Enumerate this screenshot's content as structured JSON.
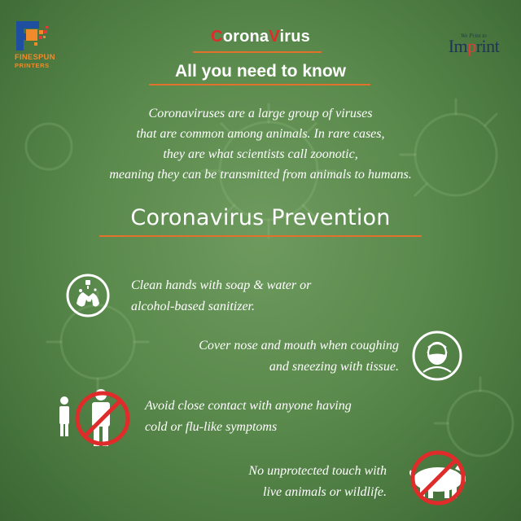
{
  "brand": {
    "logo_left": {
      "line1": "FINESPUN",
      "line2": "PRINTERS"
    },
    "logo_right": {
      "tagline": "We Print to",
      "name_prefix": "Im",
      "name_dot": "p",
      "name_suffix": "rint"
    }
  },
  "header": {
    "title_parts": [
      {
        "text": "C",
        "color": "#e02b2b"
      },
      {
        "text": "orona",
        "color": "#ffffff"
      },
      {
        "text": "V",
        "color": "#e02b2b"
      },
      {
        "text": "irus",
        "color": "#ffffff"
      }
    ],
    "subtitle": "All you need to know"
  },
  "intro": {
    "lines": [
      "Coronaviruses are a large group of  viruses",
      "that are common among animals. In rare cases,",
      "they are what scientists call zoonotic,",
      "meaning they can be transmitted from animals to humans."
    ]
  },
  "prevention": {
    "title": "Coronavirus Prevention",
    "tips": [
      {
        "lines": [
          "Clean hands with soap & water or",
          "alcohol-based sanitizer."
        ],
        "icon": "hand-washing-icon"
      },
      {
        "lines": [
          "Cover nose and mouth when coughing",
          "and sneezing with tissue."
        ],
        "icon": "face-mask-icon"
      },
      {
        "lines": [
          "Avoid close contact with anyone having",
          "cold or flu-like symptoms"
        ],
        "icon": "no-contact-icon"
      },
      {
        "lines": [
          "No unprotected touch with",
          "live animals or wildlife."
        ],
        "icon": "no-animal-contact-icon"
      }
    ]
  },
  "colors": {
    "background": "#5b8a4d",
    "accent_red": "#e02b2b",
    "rule_orange": "#e1712b",
    "brand_orange": "#f08a2a",
    "brand_blue": "#1e4fa0",
    "imprint_navy": "#1e3556"
  }
}
